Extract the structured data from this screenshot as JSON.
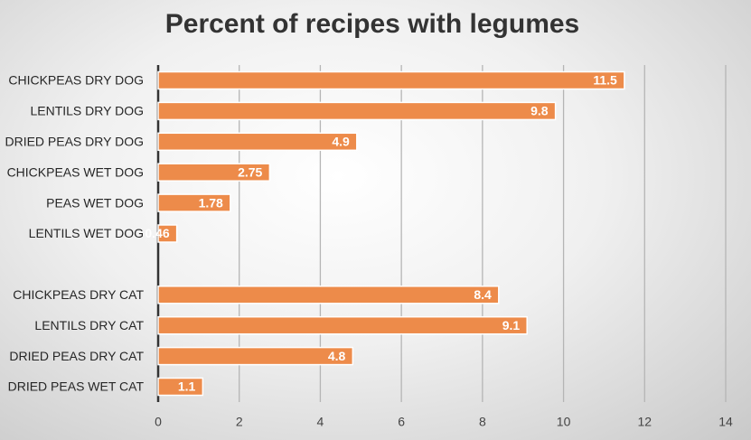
{
  "chart_data": {
    "type": "bar",
    "orientation": "horizontal",
    "title": "Percent of recipes with legumes",
    "categories": [
      "CHICKPEAS DRY DOG",
      "LENTILS DRY DOG",
      "DRIED PEAS DRY DOG",
      "CHICKPEAS WET DOG",
      "PEAS WET DOG",
      "LENTILS WET DOG",
      null,
      "CHICKPEAS DRY CAT",
      "LENTILS DRY CAT",
      "DRIED PEAS DRY CAT",
      "DRIED PEAS WET CAT"
    ],
    "values": [
      11.5,
      9.8,
      4.9,
      2.75,
      1.78,
      0.46,
      null,
      8.4,
      9.1,
      4.8,
      1.1
    ],
    "color": "#ed8b4a",
    "xlim": [
      0,
      14
    ],
    "xticks": [
      0,
      2,
      4,
      6,
      8,
      10,
      12,
      14
    ],
    "grid": true
  }
}
